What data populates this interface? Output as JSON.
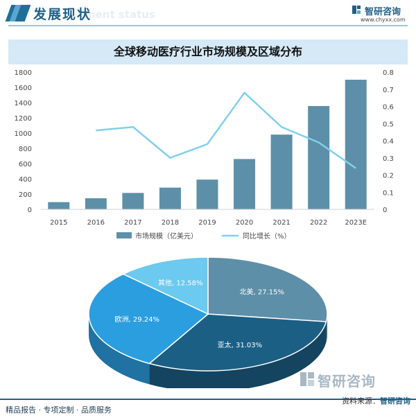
{
  "header": {
    "title": "发展现状",
    "ghost": "ment status"
  },
  "logo": {
    "name": "智研咨询",
    "url": "www.chyxx.com"
  },
  "chart_data": [
    {
      "type": "bar",
      "title": "全球移动医疗行业市场规模及区域分布",
      "categories": [
        "2015",
        "2016",
        "2017",
        "2018",
        "2019",
        "2020",
        "2021",
        "2022",
        "2023E"
      ],
      "series": [
        {
          "name": "市场规模（亿美元）",
          "type": "bar",
          "axis": "left",
          "values": [
            95,
            145,
            215,
            285,
            390,
            660,
            980,
            1355,
            1700
          ]
        },
        {
          "name": "同比增长（%）",
          "type": "line",
          "axis": "right",
          "values": [
            null,
            0.46,
            0.48,
            0.3,
            0.38,
            0.68,
            0.48,
            0.39,
            0.24
          ]
        }
      ],
      "yleft_ticks": [
        "0",
        "200",
        "400",
        "600",
        "800",
        "1000",
        "1200",
        "1400",
        "1600",
        "1800"
      ],
      "yright_ticks": [
        "0",
        "0.1",
        "0.2",
        "0.3",
        "0.4",
        "0.5",
        "0.6",
        "0.7",
        "0.8"
      ],
      "ylim_left": [
        0,
        1800
      ],
      "ylim_right": [
        0,
        0.8
      ],
      "legend": "bottom",
      "colors": {
        "bar": "#5d8fa8",
        "line": "#7fd0ee"
      }
    },
    {
      "type": "pie",
      "slices": [
        {
          "label": "北美",
          "value": 27.15,
          "text": "北美, 27.15%",
          "color": "#5d8fa8"
        },
        {
          "label": "亚太",
          "value": 31.03,
          "text": "亚太, 31.03%",
          "color": "#1c5f84"
        },
        {
          "label": "欧洲",
          "value": 29.24,
          "text": "欧洲, 29.24%",
          "color": "#2b9ee0"
        },
        {
          "label": "其他",
          "value": 12.58,
          "text": "其他, 12.58%",
          "color": "#6cc9ef"
        }
      ]
    }
  ],
  "footer": {
    "left": "精品报告 · 专项定制 · 品质服务",
    "source_label": "资料来源：",
    "source_value": "智研咨询"
  },
  "watermark": "智研咨询"
}
